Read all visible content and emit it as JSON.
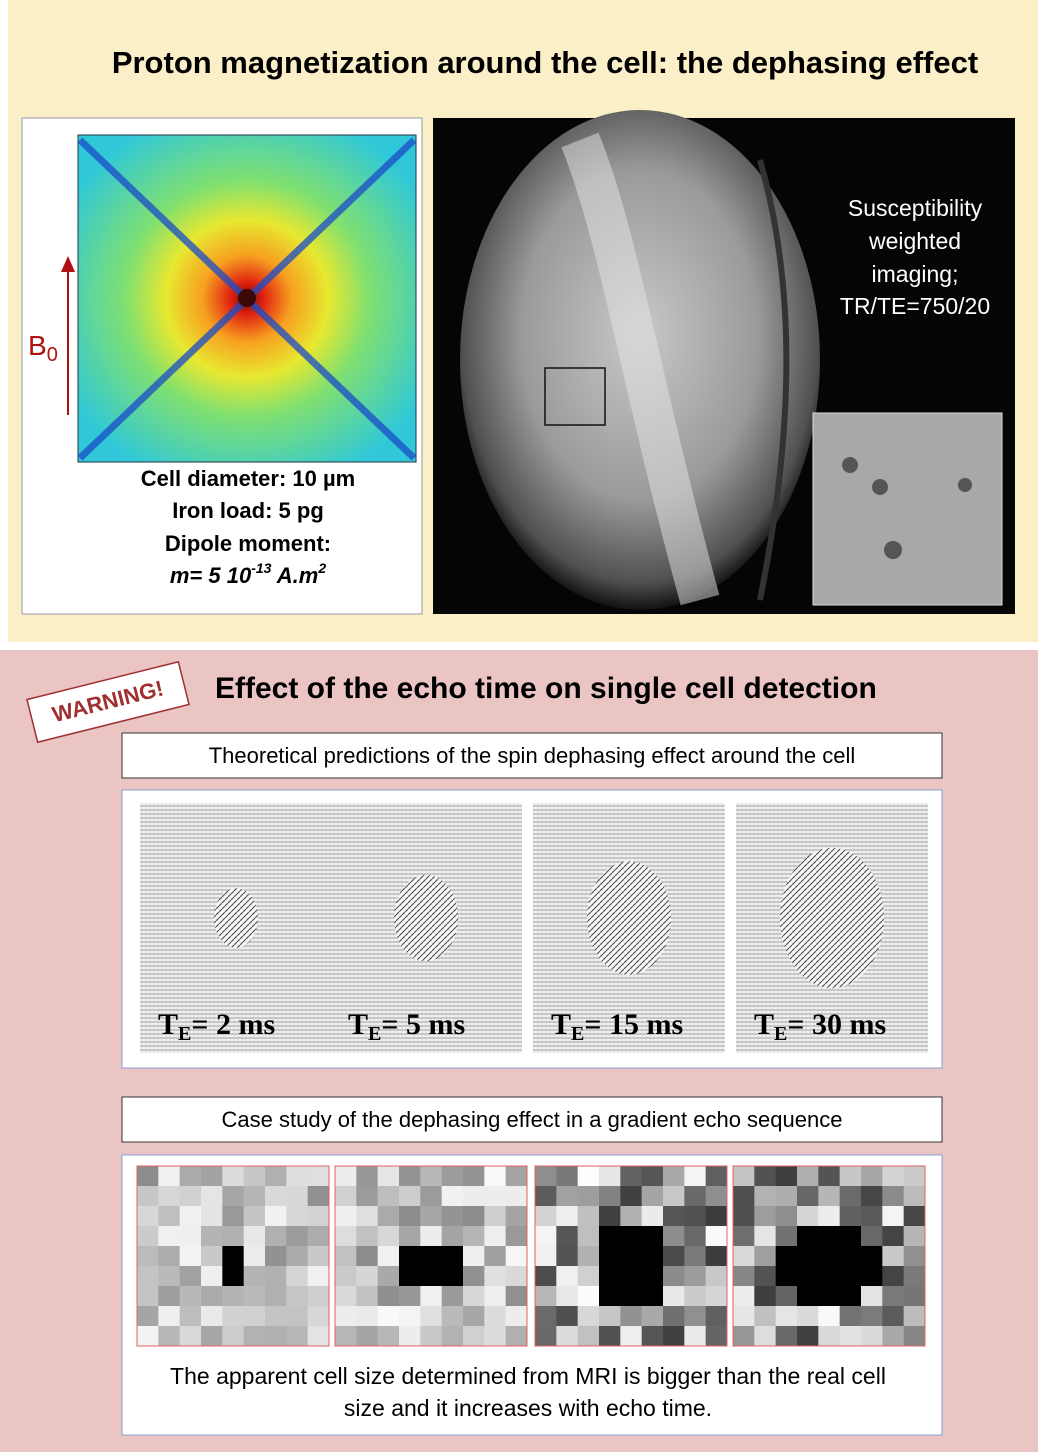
{
  "top": {
    "title": "Proton magnetization around the cell: the dephasing effect",
    "field_axis": {
      "base": "B",
      "sub": "0"
    },
    "cell_info": {
      "diameter": "Cell diameter: 10 µm",
      "iron": "Iron load: 5 pg",
      "dipole": "Dipole moment:",
      "moment": {
        "lead": "m= 5 10",
        "exp": "-13",
        "unit": " A.m",
        "unit_exp": "2"
      }
    },
    "mri_label": [
      "Susceptibility",
      "weighted",
      "imaging;",
      "TR/TE=750/20"
    ]
  },
  "bottom": {
    "warning": "WARNING!",
    "title": "Effect of the echo time on single cell detection",
    "theory_box": "Theoretical predictions of the spin dephasing effect around the cell",
    "panels": [
      {
        "base": "T",
        "sub": "E",
        "rest": "= 2 ms"
      },
      {
        "base": "T",
        "sub": "E",
        "rest": "= 5 ms"
      },
      {
        "base": "T",
        "sub": "E",
        "rest": "= 15 ms"
      },
      {
        "base": "T",
        "sub": "E",
        "rest": "= 30 ms"
      }
    ],
    "case_box": "Case study of the dephasing effect in a gradient echo sequence",
    "caption": [
      "The apparent cell size determined from MRI is bigger than the real cell",
      "size and it increases with echo time."
    ]
  }
}
